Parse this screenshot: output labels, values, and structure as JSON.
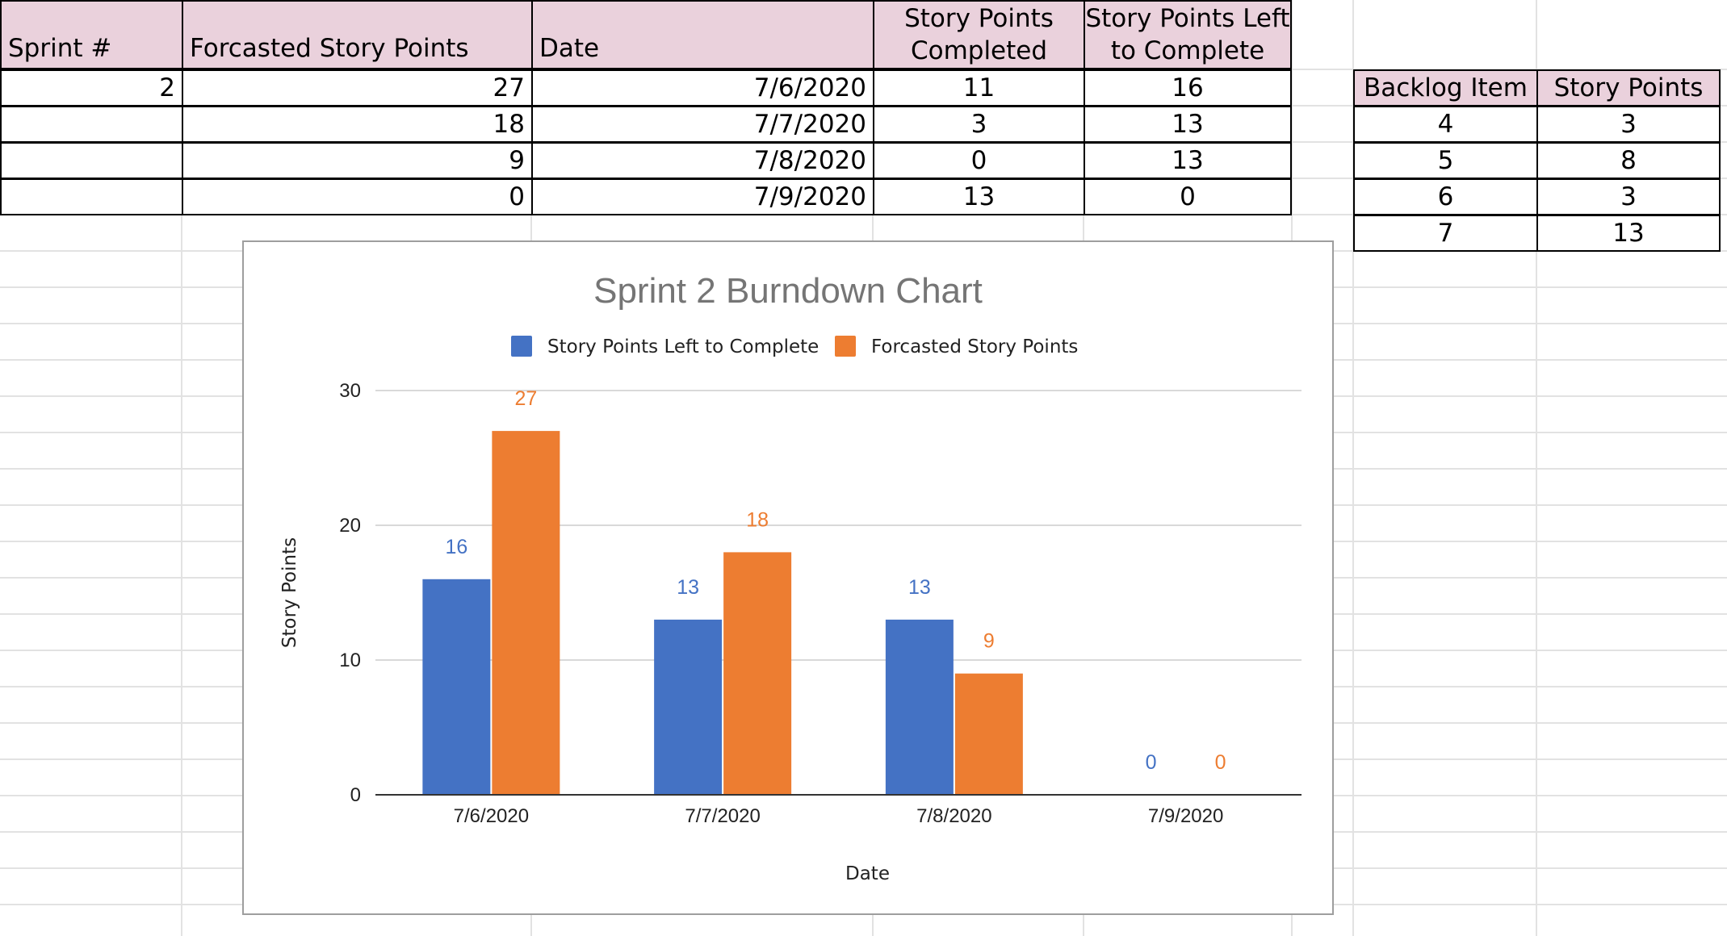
{
  "sheet": {
    "headers": {
      "sprint": "Sprint #",
      "forecast": "Forcasted Story Points",
      "date": "Date",
      "completed_line1": "Story Points",
      "completed_line2": "Completed",
      "left_line1": "Story Points Left",
      "left_line2": "to Complete"
    },
    "sprint_number": "2",
    "rows": [
      {
        "forecast": "27",
        "date": "7/6/2020",
        "completed": "11",
        "left": "16"
      },
      {
        "forecast": "18",
        "date": "7/7/2020",
        "completed": "3",
        "left": "13"
      },
      {
        "forecast": "9",
        "date": "7/8/2020",
        "completed": "0",
        "left": "13"
      },
      {
        "forecast": "0",
        "date": "7/9/2020",
        "completed": "13",
        "left": "0"
      }
    ]
  },
  "backlog": {
    "headers": {
      "item": "Backlog Item",
      "points": "Story Points"
    },
    "rows": [
      {
        "item": "4",
        "points": "3"
      },
      {
        "item": "5",
        "points": "8"
      },
      {
        "item": "6",
        "points": "3"
      },
      {
        "item": "7",
        "points": "13"
      }
    ]
  },
  "colors": {
    "header_fill": "#ead1dc",
    "series_left": "#4472c4",
    "series_forecast": "#ed7d31",
    "title": "#757575",
    "gridline": "#d9d9d9"
  },
  "chart_data": {
    "type": "bar",
    "title": "Sprint 2 Burndown Chart",
    "xlabel": "Date",
    "ylabel": "Story Points",
    "categories": [
      "7/6/2020",
      "7/7/2020",
      "7/8/2020",
      "7/9/2020"
    ],
    "series": [
      {
        "name": "Story Points Left to Complete",
        "values": [
          16,
          13,
          13,
          0
        ]
      },
      {
        "name": "Forcasted Story Points",
        "values": [
          27,
          18,
          9,
          0
        ]
      }
    ],
    "ylim": [
      0,
      30
    ],
    "yticks": [
      0,
      10,
      20,
      30
    ],
    "grid": true,
    "legend": "top"
  }
}
